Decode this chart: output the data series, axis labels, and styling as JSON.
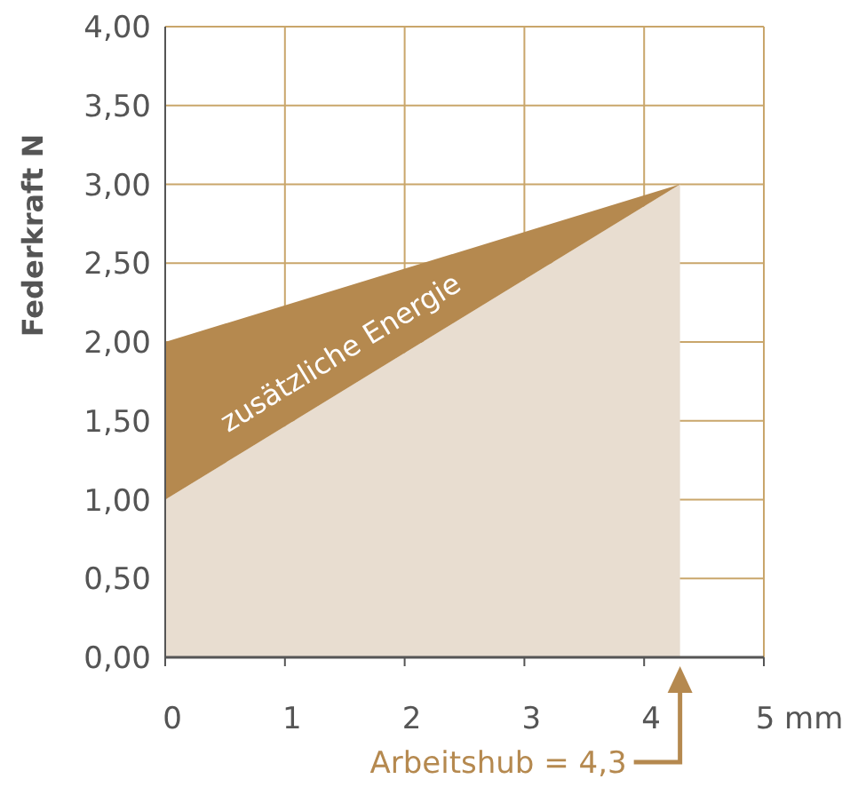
{
  "chart_data": {
    "type": "area",
    "ylabel": "Federkraft N",
    "stacked": true,
    "grid": true,
    "x": [
      0,
      4.3
    ],
    "series": [
      {
        "color": "#e8ddd0",
        "values": [
          1.0,
          3.0
        ]
      },
      {
        "color": "#b5894f",
        "values": [
          1.0,
          0.0
        ]
      }
    ],
    "xlim": [
      0,
      5
    ],
    "xticks": [
      0,
      1,
      2,
      3,
      4,
      {
        "value": 5,
        "label": "5 mm"
      }
    ],
    "ylim": [
      0,
      4
    ],
    "yticks": [
      {
        "value": 0,
        "label": "0,00"
      },
      {
        "value": 0.5,
        "label": "0,50"
      },
      {
        "value": 1,
        "label": "1,00"
      },
      {
        "value": 1.5,
        "label": "1,50"
      },
      {
        "value": 2,
        "label": "2,00"
      },
      {
        "value": 2.5,
        "label": "2,50"
      },
      {
        "value": 3,
        "label": "3,00"
      },
      {
        "value": 3.5,
        "label": "3,50"
      },
      {
        "value": 4,
        "label": "4,00"
      }
    ],
    "annotations": [
      "zusätzliche Energie",
      "Arbeitshub = 4,3"
    ]
  }
}
